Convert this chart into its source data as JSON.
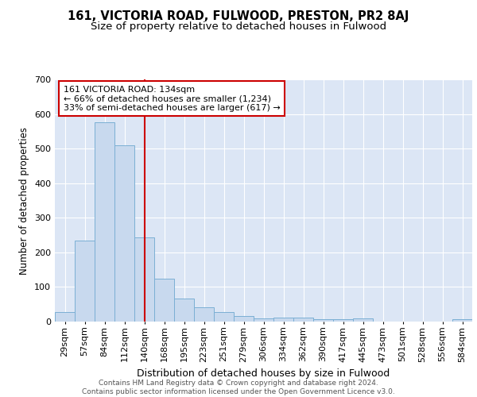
{
  "title": "161, VICTORIA ROAD, FULWOOD, PRESTON, PR2 8AJ",
  "subtitle": "Size of property relative to detached houses in Fulwood",
  "xlabel": "Distribution of detached houses by size in Fulwood",
  "ylabel": "Number of detached properties",
  "categories": [
    "29sqm",
    "57sqm",
    "84sqm",
    "112sqm",
    "140sqm",
    "168sqm",
    "195sqm",
    "223sqm",
    "251sqm",
    "279sqm",
    "306sqm",
    "334sqm",
    "362sqm",
    "390sqm",
    "417sqm",
    "445sqm",
    "473sqm",
    "501sqm",
    "528sqm",
    "556sqm",
    "584sqm"
  ],
  "values": [
    28,
    234,
    575,
    510,
    243,
    125,
    67,
    42,
    27,
    15,
    10,
    11,
    11,
    6,
    6,
    9,
    0,
    0,
    0,
    0,
    6
  ],
  "bar_color": "#c8d9ee",
  "bar_edge_color": "#7bafd4",
  "vline_x": 4,
  "vline_color": "#cc0000",
  "annotation_text": "161 VICTORIA ROAD: 134sqm\n← 66% of detached houses are smaller (1,234)\n33% of semi-detached houses are larger (617) →",
  "annotation_box_color": "white",
  "annotation_box_edge_color": "#cc0000",
  "ylim": [
    0,
    700
  ],
  "yticks": [
    0,
    100,
    200,
    300,
    400,
    500,
    600,
    700
  ],
  "grid_color": "#ffffff",
  "background_color": "#dce6f5",
  "footer_text": "Contains HM Land Registry data © Crown copyright and database right 2024.\nContains public sector information licensed under the Open Government Licence v3.0.",
  "title_fontsize": 10.5,
  "subtitle_fontsize": 9.5,
  "xlabel_fontsize": 9,
  "ylabel_fontsize": 8.5,
  "tick_fontsize": 8,
  "annotation_fontsize": 8,
  "footer_fontsize": 6.5
}
